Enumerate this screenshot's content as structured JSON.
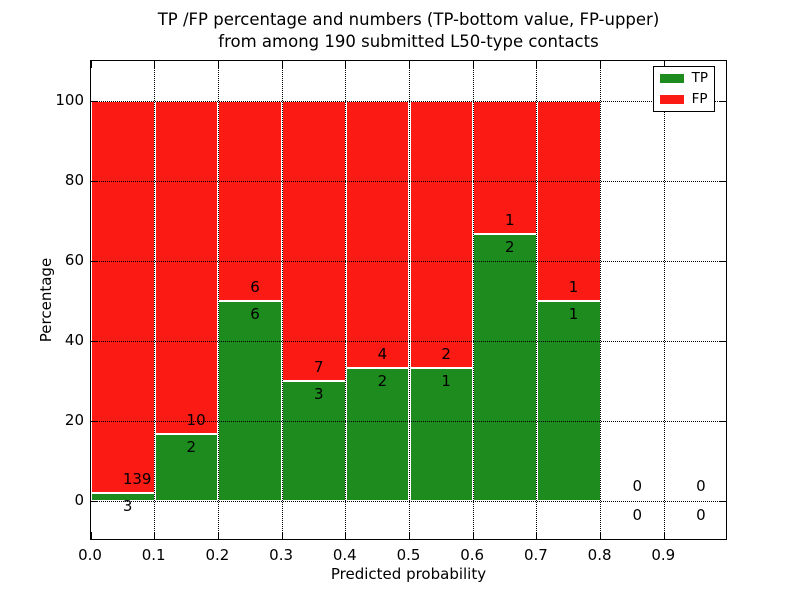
{
  "chart_data": {
    "type": "bar",
    "stacked": true,
    "title_line1": "TP /FP percentage and numbers (TP-bottom value, FP-upper)",
    "title_line2": "from among 190 submitted L50-type contacts",
    "xlabel": "Predicted probability",
    "ylabel": "Percentage",
    "xlim": [
      0.0,
      1.0
    ],
    "ylim": [
      -10,
      110
    ],
    "bin_width": 0.1,
    "xticks": [
      "0.0",
      "0.1",
      "0.2",
      "0.3",
      "0.4",
      "0.5",
      "0.6",
      "0.7",
      "0.8",
      "0.9"
    ],
    "ytick_values": [
      0,
      20,
      40,
      60,
      80,
      100
    ],
    "grid": "dotted",
    "annotation_note": "TP count below segment top, FP count above segment top",
    "legend": {
      "position": "upper-right",
      "entries": [
        {
          "label": "TP",
          "color": "#1e8b1e"
        },
        {
          "label": "FP",
          "color": "#fb1b14"
        }
      ]
    },
    "bins": [
      {
        "range": "0.0-0.1",
        "tp": 3,
        "fp": 139
      },
      {
        "range": "0.1-0.2",
        "tp": 2,
        "fp": 10
      },
      {
        "range": "0.2-0.3",
        "tp": 6,
        "fp": 6
      },
      {
        "range": "0.3-0.4",
        "tp": 3,
        "fp": 7
      },
      {
        "range": "0.4-0.5",
        "tp": 2,
        "fp": 4
      },
      {
        "range": "0.5-0.6",
        "tp": 1,
        "fp": 2
      },
      {
        "range": "0.6-0.7",
        "tp": 2,
        "fp": 1
      },
      {
        "range": "0.7-0.8",
        "tp": 1,
        "fp": 1
      },
      {
        "range": "0.8-0.9",
        "tp": 0,
        "fp": 0
      },
      {
        "range": "0.9-1.0",
        "tp": 0,
        "fp": 0
      }
    ],
    "colors": {
      "tp_green": "#1e8b1e",
      "fp_red": "#fb1b14",
      "bar_edge": "#ffffff",
      "text": "#000000",
      "grid": "#000000"
    }
  }
}
